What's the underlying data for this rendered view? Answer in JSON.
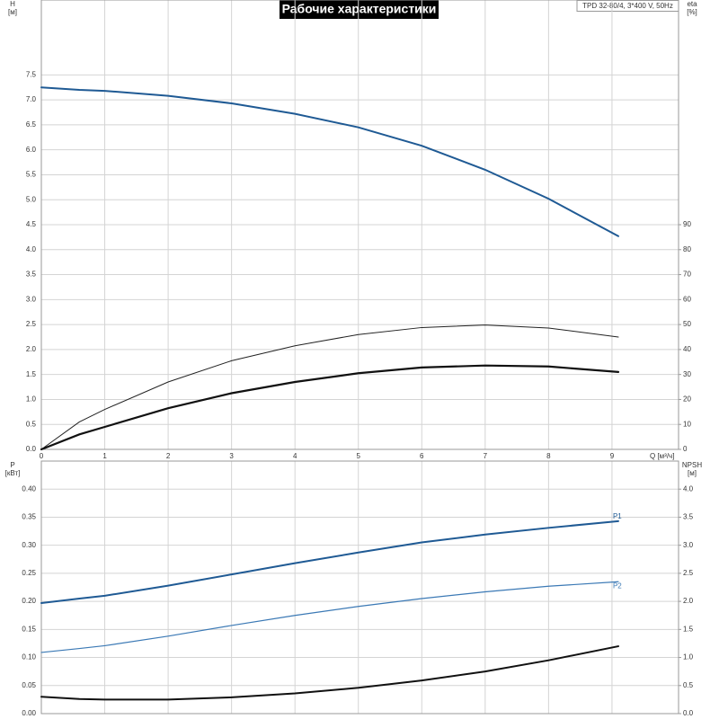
{
  "chart_data": [
    {
      "type": "line",
      "title": "Рабочие характеристики",
      "annotation": "TPD 32-80/4, 3*400 V, 50Hz",
      "ylabel": "H",
      "yunit": "[м]",
      "y2label": "eta",
      "y2unit": "[%]",
      "xlabel": "Q [м³/ч]",
      "x": [
        0,
        0.6,
        1,
        2,
        3,
        4,
        5,
        6,
        7,
        8,
        9.1
      ],
      "xlim": [
        0,
        10.05
      ],
      "xticks": [
        0,
        1,
        2,
        3,
        4,
        5,
        6,
        7,
        8,
        9
      ],
      "ylim": [
        0,
        9
      ],
      "yticks": [
        {
          "value": 0,
          "label": "0.0"
        },
        {
          "value": 0.5,
          "label": "0.5"
        },
        {
          "value": 1,
          "label": "1.0"
        },
        {
          "value": 1.5,
          "label": "1.5"
        },
        {
          "value": 2,
          "label": "2.0"
        },
        {
          "value": 2.5,
          "label": "2.5"
        },
        {
          "value": 3,
          "label": "3.0"
        },
        {
          "value": 3.5,
          "label": "3.5"
        },
        {
          "value": 4,
          "label": "4.0"
        },
        {
          "value": 4.5,
          "label": "4.5"
        },
        {
          "value": 5,
          "label": "5.0"
        },
        {
          "value": 5.5,
          "label": "5.5"
        },
        {
          "value": 6,
          "label": "6.0"
        },
        {
          "value": 6.5,
          "label": "6.5"
        },
        {
          "value": 7,
          "label": "7.0"
        },
        {
          "value": 7.5,
          "label": "7.5"
        }
      ],
      "y2lim": [
        0,
        180
      ],
      "y2ticks": [
        0,
        10,
        20,
        30,
        40,
        50,
        60,
        70,
        80,
        90
      ],
      "grid": true,
      "series": [
        {
          "color": "#1f5a94",
          "width": 2,
          "values": [
            7.25,
            7.2,
            7.18,
            7.08,
            6.93,
            6.72,
            6.45,
            6.08,
            5.6,
            5.02,
            4.27
          ]
        },
        {
          "color": "#222222",
          "width": 1,
          "axis": "y2",
          "values": [
            0,
            11,
            16,
            27,
            35.5,
            41.5,
            46,
            48.8,
            49.8,
            48.6,
            45
          ]
        },
        {
          "color": "#111111",
          "width": 2.2,
          "axis": "y2",
          "values": [
            0,
            6,
            9,
            16.5,
            22.5,
            27,
            30.5,
            32.8,
            33.6,
            33.2,
            31
          ]
        }
      ]
    },
    {
      "type": "line",
      "ylabel": "P",
      "yunit": "[кВт]",
      "y2label": "NPSH",
      "y2unit": "[м]",
      "x": [
        0,
        0.6,
        1,
        2,
        3,
        4,
        5,
        6,
        7,
        8,
        9.1
      ],
      "xlim": [
        0,
        10.05
      ],
      "ylim": [
        0,
        0.45
      ],
      "yticks": [
        {
          "value": 0,
          "label": "0.00"
        },
        {
          "value": 0.05,
          "label": "0.05"
        },
        {
          "value": 0.1,
          "label": "0.10"
        },
        {
          "value": 0.15,
          "label": "0.15"
        },
        {
          "value": 0.2,
          "label": "0.20"
        },
        {
          "value": 0.25,
          "label": "0.25"
        },
        {
          "value": 0.3,
          "label": "0.30"
        },
        {
          "value": 0.35,
          "label": "0.35"
        },
        {
          "value": 0.4,
          "label": "0.40"
        }
      ],
      "y2lim": [
        0,
        4.5
      ],
      "y2ticks": [
        {
          "value": 0,
          "label": "0.0"
        },
        {
          "value": 0.5,
          "label": "0.5"
        },
        {
          "value": 1,
          "label": "1.0"
        },
        {
          "value": 1.5,
          "label": "1.5"
        },
        {
          "value": 2,
          "label": "2.0"
        },
        {
          "value": 2.5,
          "label": "2.5"
        },
        {
          "value": 3,
          "label": "3.0"
        },
        {
          "value": 3.5,
          "label": "3.5"
        },
        {
          "value": 4,
          "label": "4.0"
        }
      ],
      "grid": true,
      "series": [
        {
          "name": "P1",
          "color": "#1f5a94",
          "width": 2,
          "values": [
            0.197,
            0.205,
            0.21,
            0.228,
            0.248,
            0.268,
            0.287,
            0.305,
            0.319,
            0.331,
            0.343
          ]
        },
        {
          "name": "P2",
          "color": "#3b79b5",
          "width": 1.2,
          "values": [
            0.109,
            0.116,
            0.121,
            0.138,
            0.157,
            0.175,
            0.191,
            0.205,
            0.217,
            0.227,
            0.235
          ]
        },
        {
          "color": "#111111",
          "width": 2,
          "axis": "y2",
          "values": [
            0.3,
            0.26,
            0.25,
            0.25,
            0.29,
            0.36,
            0.46,
            0.59,
            0.75,
            0.95,
            1.2
          ]
        }
      ]
    }
  ]
}
